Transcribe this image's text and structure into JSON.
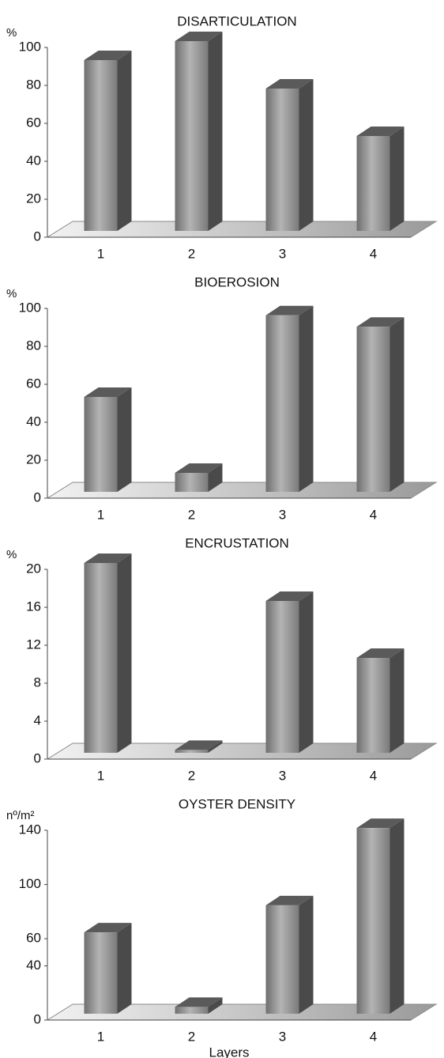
{
  "chart_data": [
    {
      "type": "bar3d",
      "title": "DISARTICULATION",
      "y_label": "%",
      "categories": [
        "1",
        "2",
        "3",
        "4"
      ],
      "values": [
        90,
        100,
        75,
        50
      ],
      "ylim": [
        0,
        100
      ],
      "yticks": [
        0,
        20,
        40,
        60,
        80,
        100
      ],
      "color": "#8c8c8c"
    },
    {
      "type": "bar3d",
      "title": "BIOEROSION",
      "y_label": "%",
      "categories": [
        "1",
        "2",
        "3",
        "4"
      ],
      "values": [
        50,
        10,
        93,
        87
      ],
      "ylim": [
        0,
        100
      ],
      "yticks": [
        0,
        20,
        40,
        60,
        80,
        100
      ],
      "color": "#8c8c8c"
    },
    {
      "type": "bar3d",
      "title": "ENCRUSTATION",
      "y_label": "%",
      "categories": [
        "1",
        "2",
        "3",
        "4"
      ],
      "values": [
        20,
        0.3,
        16,
        10
      ],
      "ylim": [
        0,
        20
      ],
      "yticks": [
        0,
        4,
        8,
        12,
        16,
        20
      ],
      "color": "#8c8c8c"
    },
    {
      "type": "bar3d",
      "title": "OYSTER DENSITY",
      "y_label": "nº/m²",
      "x_label": "Layers",
      "categories": [
        "1",
        "2",
        "3",
        "4"
      ],
      "values": [
        60,
        5,
        80,
        137
      ],
      "ylim": [
        0,
        140
      ],
      "yticks": [
        0,
        40,
        60,
        100,
        140
      ],
      "color": "#8c8c8c"
    }
  ]
}
